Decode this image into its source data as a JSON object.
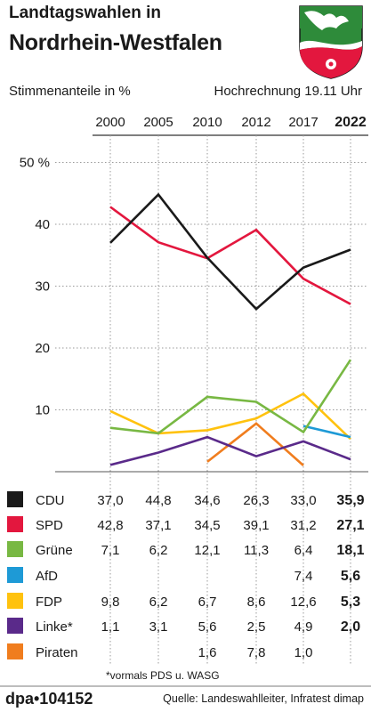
{
  "header": {
    "title_line1": "Landtagswahlen in",
    "title_line2": "Nordrhein-Westfalen",
    "subtitle": "Stimmenanteile in %",
    "timestamp": "Hochrechnung 19.11 Uhr"
  },
  "chart_data": {
    "type": "line",
    "title": "Landtagswahlen in Nordrhein-Westfalen",
    "ylabel": "Stimmenanteile in %",
    "x": [
      "2000",
      "2005",
      "2010",
      "2012",
      "2017",
      "2022"
    ],
    "y_ticks": [
      "50 %",
      "40",
      "30",
      "20",
      "10"
    ],
    "ylim": [
      0,
      50
    ],
    "series": [
      {
        "name": "CDU",
        "color": "#1a1a1a",
        "values": [
          37.0,
          44.8,
          34.6,
          26.3,
          33.0,
          35.9
        ],
        "labels": [
          "37,0",
          "44,8",
          "34,6",
          "26,3",
          "33,0",
          "35,9"
        ]
      },
      {
        "name": "SPD",
        "color": "#e3173e",
        "values": [
          42.8,
          37.1,
          34.5,
          39.1,
          31.2,
          27.1
        ],
        "labels": [
          "42,8",
          "37,1",
          "34,5",
          "39,1",
          "31,2",
          "27,1"
        ]
      },
      {
        "name": "Grüne",
        "color": "#78b843",
        "values": [
          7.1,
          6.2,
          12.1,
          11.3,
          6.4,
          18.1
        ],
        "labels": [
          "7,1",
          "6,2",
          "12,1",
          "11,3",
          "6,4",
          "18,1"
        ]
      },
      {
        "name": "AfD",
        "color": "#1e9ad6",
        "values": [
          null,
          null,
          null,
          null,
          7.4,
          5.6
        ],
        "labels": [
          "",
          "",
          "",
          "",
          "7,4",
          "5,6"
        ]
      },
      {
        "name": "FDP",
        "color": "#ffc20e",
        "values": [
          9.8,
          6.2,
          6.7,
          8.6,
          12.6,
          5.3
        ],
        "labels": [
          "9,8",
          "6,2",
          "6,7",
          "8,6",
          "12,6",
          "5,3"
        ]
      },
      {
        "name": "Linke*",
        "color": "#5a2a8a",
        "values": [
          1.1,
          3.1,
          5.6,
          2.5,
          4.9,
          2.0
        ],
        "labels": [
          "1,1",
          "3,1",
          "5,6",
          "2,5",
          "4,9",
          "2,0"
        ]
      },
      {
        "name": "Piraten",
        "color": "#f07d1e",
        "values": [
          null,
          null,
          1.6,
          7.8,
          1.0,
          null
        ],
        "labels": [
          "",
          "",
          "1,6",
          "7,8",
          "1,0",
          ""
        ]
      }
    ]
  },
  "footnote": "*vormals PDS u. WASG",
  "footer": {
    "agency": "dpa•104152",
    "source": "Quelle: Landeswahlleiter, Infratest dimap"
  }
}
